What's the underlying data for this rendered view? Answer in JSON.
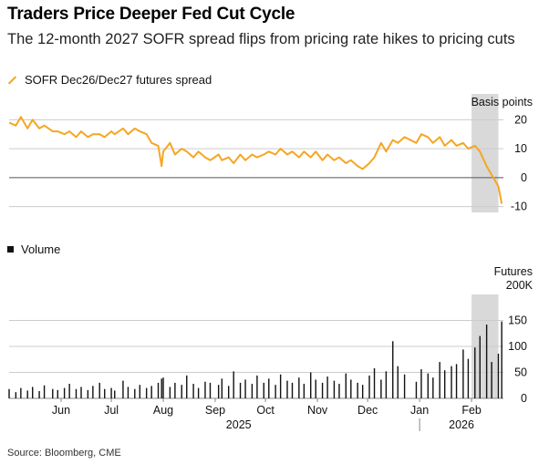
{
  "title": "Traders Price Deeper Fed Cut Cycle",
  "subtitle": "The 12-month 2027 SOFR spread flips from pricing rate hikes to pricing cuts",
  "source": "Source: Bloomberg, CME",
  "colors": {
    "spread_line": "#f5a623",
    "volume_bars": "#111111",
    "highlight": "#d9d9d9",
    "grid": "#cccccc",
    "zero_line": "#555555"
  },
  "icons": {
    "spread_legend": "line-swatch-icon",
    "volume_legend": "square-swatch-icon"
  },
  "chart_data": [
    {
      "type": "line",
      "legend": "SOFR Dec26/Dec27 futures spread",
      "unit_label": "Basis points",
      "ylim": [
        -12,
        22
      ],
      "yticks": [
        20,
        10,
        0,
        -10
      ],
      "highlight_range": [
        "2026-02-01",
        "2026-02-17"
      ],
      "x": [
        "2025-05-01",
        "2025-05-05",
        "2025-05-08",
        "2025-05-12",
        "2025-05-15",
        "2025-05-19",
        "2025-05-22",
        "2025-05-27",
        "2025-05-30",
        "2025-06-03",
        "2025-06-06",
        "2025-06-10",
        "2025-06-13",
        "2025-06-17",
        "2025-06-20",
        "2025-06-24",
        "2025-06-27",
        "2025-07-01",
        "2025-07-03",
        "2025-07-08",
        "2025-07-11",
        "2025-07-15",
        "2025-07-18",
        "2025-07-22",
        "2025-07-25",
        "2025-07-29",
        "2025-07-31",
        "2025-08-01",
        "2025-08-05",
        "2025-08-08",
        "2025-08-12",
        "2025-08-15",
        "2025-08-19",
        "2025-08-22",
        "2025-08-26",
        "2025-08-29",
        "2025-09-03",
        "2025-09-05",
        "2025-09-09",
        "2025-09-12",
        "2025-09-16",
        "2025-09-19",
        "2025-09-23",
        "2025-09-26",
        "2025-09-30",
        "2025-10-03",
        "2025-10-07",
        "2025-10-10",
        "2025-10-14",
        "2025-10-17",
        "2025-10-21",
        "2025-10-24",
        "2025-10-28",
        "2025-10-31",
        "2025-11-04",
        "2025-11-07",
        "2025-11-11",
        "2025-11-14",
        "2025-11-18",
        "2025-11-21",
        "2025-11-25",
        "2025-11-28",
        "2025-12-02",
        "2025-12-05",
        "2025-12-09",
        "2025-12-12",
        "2025-12-16",
        "2025-12-19",
        "2025-12-23",
        "2025-12-30",
        "2026-01-02",
        "2026-01-06",
        "2026-01-09",
        "2026-01-13",
        "2026-01-16",
        "2026-01-20",
        "2026-01-23",
        "2026-01-27",
        "2026-01-30",
        "2026-02-03",
        "2026-02-06",
        "2026-02-10",
        "2026-02-13",
        "2026-02-17",
        "2026-02-19"
      ],
      "y": [
        19,
        18,
        21,
        17,
        20,
        17,
        18,
        16,
        16,
        15,
        16,
        14,
        16,
        14,
        15,
        15,
        14,
        16,
        15,
        17,
        15,
        17,
        16,
        15,
        12,
        11,
        4,
        9,
        12,
        8,
        10,
        9,
        7,
        9,
        7,
        6,
        8,
        6,
        7,
        5,
        8,
        6,
        8,
        7,
        8,
        9,
        8,
        10,
        8,
        9,
        7,
        9,
        7,
        9,
        6,
        8,
        6,
        7,
        5,
        6,
        4,
        3,
        5,
        7,
        12,
        9,
        13,
        12,
        14,
        12,
        15,
        14,
        12,
        14,
        11,
        13,
        11,
        12,
        10,
        11,
        9,
        4,
        1,
        -3,
        -9
      ]
    },
    {
      "type": "bar",
      "legend": "Volume",
      "unit_label": "Futures",
      "unit_label_2": "200K",
      "ylim": [
        0,
        200
      ],
      "yticks": [
        150,
        100,
        50,
        0
      ],
      "x_months": [
        "Jun",
        "Jul",
        "Aug",
        "Sep",
        "Oct",
        "Nov",
        "Dec",
        "Jan",
        "Feb"
      ],
      "x_years": [
        "2025",
        "2026"
      ],
      "x": [
        "2025-05-01",
        "2025-05-05",
        "2025-05-08",
        "2025-05-12",
        "2025-05-15",
        "2025-05-19",
        "2025-05-22",
        "2025-05-27",
        "2025-05-30",
        "2025-06-03",
        "2025-06-06",
        "2025-06-10",
        "2025-06-13",
        "2025-06-17",
        "2025-06-20",
        "2025-06-24",
        "2025-06-27",
        "2025-07-01",
        "2025-07-03",
        "2025-07-08",
        "2025-07-11",
        "2025-07-15",
        "2025-07-18",
        "2025-07-22",
        "2025-07-25",
        "2025-07-29",
        "2025-07-31",
        "2025-08-01",
        "2025-08-05",
        "2025-08-08",
        "2025-08-12",
        "2025-08-15",
        "2025-08-19",
        "2025-08-22",
        "2025-08-26",
        "2025-08-29",
        "2025-09-03",
        "2025-09-05",
        "2025-09-09",
        "2025-09-12",
        "2025-09-16",
        "2025-09-19",
        "2025-09-23",
        "2025-09-26",
        "2025-09-30",
        "2025-10-03",
        "2025-10-07",
        "2025-10-10",
        "2025-10-14",
        "2025-10-17",
        "2025-10-21",
        "2025-10-24",
        "2025-10-28",
        "2025-10-31",
        "2025-11-04",
        "2025-11-07",
        "2025-11-11",
        "2025-11-14",
        "2025-11-18",
        "2025-11-21",
        "2025-11-25",
        "2025-11-28",
        "2025-12-02",
        "2025-12-05",
        "2025-12-09",
        "2025-12-12",
        "2025-12-16",
        "2025-12-19",
        "2025-12-23",
        "2025-12-30",
        "2026-01-02",
        "2026-01-06",
        "2026-01-09",
        "2026-01-13",
        "2026-01-16",
        "2026-01-20",
        "2026-01-23",
        "2026-01-27",
        "2026-01-30",
        "2026-02-03",
        "2026-02-06",
        "2026-02-10",
        "2026-02-13",
        "2026-02-17",
        "2026-02-19"
      ],
      "values": [
        18,
        12,
        20,
        15,
        22,
        14,
        25,
        18,
        16,
        20,
        28,
        18,
        22,
        16,
        24,
        30,
        18,
        20,
        15,
        34,
        22,
        18,
        26,
        20,
        24,
        30,
        38,
        40,
        22,
        30,
        26,
        44,
        28,
        20,
        32,
        30,
        26,
        38,
        24,
        52,
        30,
        36,
        28,
        44,
        30,
        38,
        26,
        46,
        34,
        30,
        40,
        28,
        50,
        36,
        30,
        42,
        34,
        28,
        48,
        36,
        30,
        26,
        44,
        58,
        36,
        52,
        110,
        62,
        46,
        32,
        56,
        48,
        40,
        70,
        54,
        62,
        66,
        94,
        76,
        98,
        120,
        142,
        70,
        86,
        148
      ]
    }
  ]
}
